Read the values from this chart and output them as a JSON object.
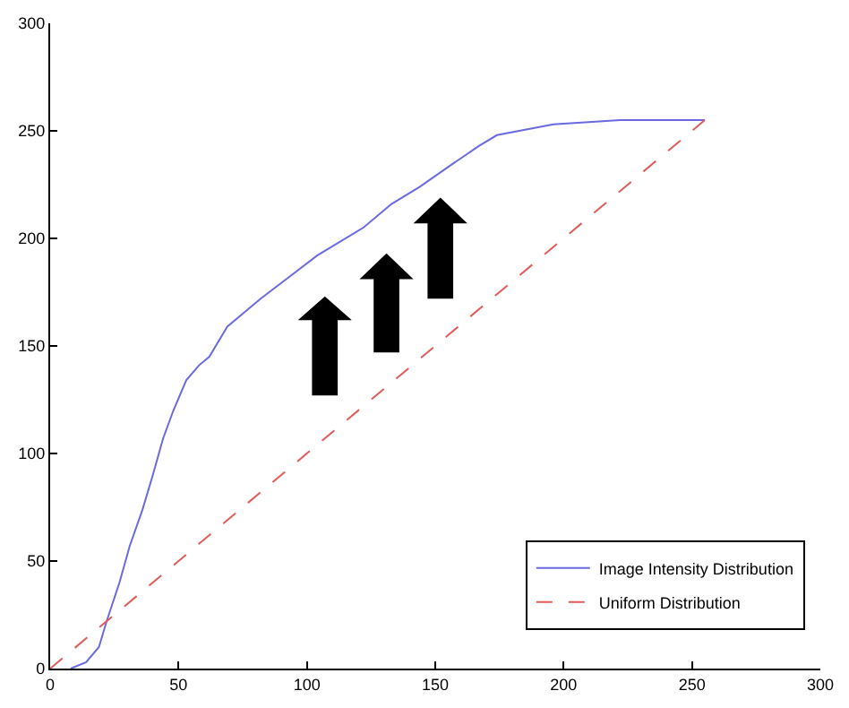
{
  "chart_data": {
    "type": "line",
    "xlim": [
      0,
      300
    ],
    "ylim": [
      0,
      300
    ],
    "xticks": [
      0,
      50,
      100,
      150,
      200,
      250,
      300
    ],
    "yticks": [
      0,
      50,
      100,
      150,
      200,
      250,
      300
    ],
    "legend": "bottom right",
    "marker": "none",
    "series": [
      {
        "name": "Image Intensity Distribution",
        "color": "#6a6ae0",
        "line_style": "solid",
        "x": [
          8,
          14,
          19,
          22,
          27,
          31,
          36,
          40,
          44,
          48,
          53,
          58,
          62,
          69,
          82,
          93,
          104,
          122,
          133,
          144,
          156,
          167,
          174,
          196,
          222,
          255
        ],
        "values": [
          0,
          3,
          10,
          22,
          40,
          57,
          74,
          90,
          107,
          120,
          134,
          141,
          145,
          159,
          172,
          182,
          192,
          205,
          216,
          224,
          234,
          243,
          248,
          253,
          255,
          255
        ]
      },
      {
        "name": "Uniform Distribution",
        "color": "#e05a5a",
        "line_style": "dashed",
        "x": [
          0,
          255
        ],
        "values": [
          0,
          255
        ]
      }
    ]
  }
}
